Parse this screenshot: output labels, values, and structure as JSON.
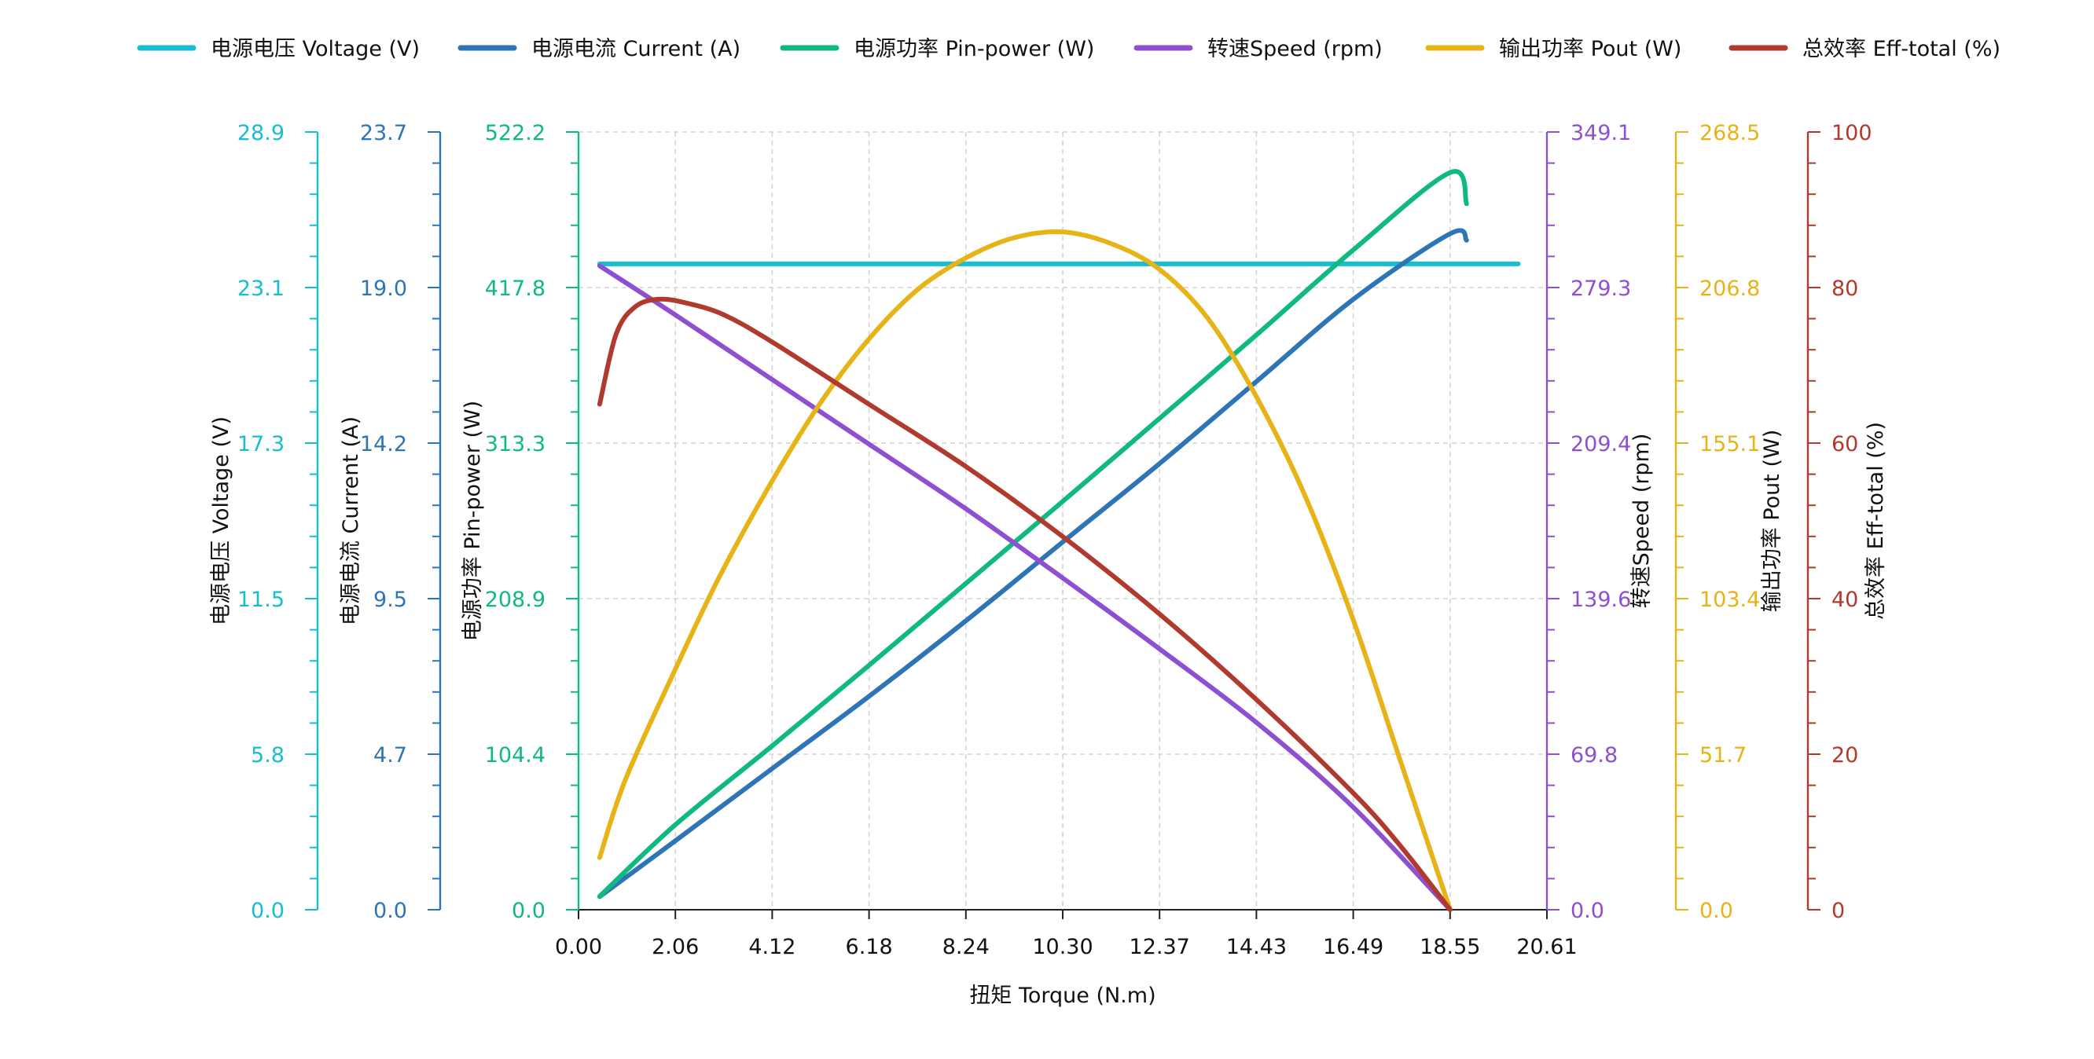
{
  "chart_data": {
    "type": "line",
    "xlabel": "扭矩 Torque (N.m)",
    "xlim": [
      0,
      20.61
    ],
    "xticks": [
      "0.00",
      "2.06",
      "4.12",
      "6.18",
      "8.24",
      "10.30",
      "12.37",
      "14.43",
      "16.49",
      "18.55",
      "20.61"
    ],
    "grid": true,
    "legend_position": "top",
    "axes": [
      {
        "key": "voltage",
        "label": "电源电压 Voltage (V)",
        "color": "#17becf",
        "side": "left",
        "max": 28.9,
        "ticks": [
          "0.0",
          "5.8",
          "11.5",
          "17.3",
          "23.1",
          "28.9"
        ]
      },
      {
        "key": "current",
        "label": "电源电流 Current (A)",
        "color": "#2e75b6",
        "side": "left",
        "max": 23.7,
        "ticks": [
          "0.0",
          "4.7",
          "9.5",
          "14.2",
          "19.0",
          "23.7"
        ]
      },
      {
        "key": "pin",
        "label": "电源功率 Pin-power (W)",
        "color": "#10b981",
        "side": "left",
        "max": 522.2,
        "ticks": [
          "0.0",
          "104.4",
          "208.9",
          "313.3",
          "417.8",
          "522.2"
        ]
      },
      {
        "key": "speed",
        "label": "转速Speed (rpm)",
        "color": "#8e4fd1",
        "side": "right",
        "max": 349.1,
        "ticks": [
          "0.0",
          "69.8",
          "139.6",
          "209.4",
          "279.3",
          "349.1"
        ]
      },
      {
        "key": "pout",
        "label": "输出功率 Pout (W)",
        "color": "#e6b417",
        "side": "right",
        "max": 268.5,
        "ticks": [
          "0.0",
          "51.7",
          "103.4",
          "155.1",
          "206.8",
          "268.5"
        ]
      },
      {
        "key": "eff",
        "label": "总效率 Eff-total (%)",
        "color": "#b03a2e",
        "side": "right",
        "max": 100,
        "ticks": [
          "0",
          "20",
          "40",
          "60",
          "80",
          "100"
        ]
      }
    ],
    "series": [
      {
        "name": "电源电压 Voltage (V)",
        "axis": "voltage",
        "color": "#17becf",
        "x": [
          0.45,
          18.55,
          18.9
        ],
        "y": [
          24.0,
          24.0,
          24.0
        ]
      },
      {
        "name": "电源电流 Current (A)",
        "axis": "current",
        "color": "#2e75b6",
        "x": [
          0.45,
          2.06,
          4.12,
          6.18,
          8.24,
          10.3,
          12.37,
          14.43,
          16.49,
          18.55,
          18.9
        ],
        "y": [
          0.4,
          2.1,
          4.3,
          6.5,
          8.8,
          11.2,
          13.6,
          16.1,
          18.6,
          20.6,
          20.4
        ]
      },
      {
        "name": "电源功率 Pin-power (W)",
        "axis": "pin",
        "color": "#10b981",
        "x": [
          0.45,
          2.06,
          4.12,
          6.18,
          8.24,
          10.3,
          12.37,
          14.43,
          16.49,
          18.55,
          18.9
        ],
        "y": [
          9,
          57,
          110,
          164,
          219,
          274,
          330,
          386,
          443,
          495,
          474
        ]
      },
      {
        "name": "转速Speed (rpm)",
        "axis": "speed",
        "color": "#8e4fd1",
        "x": [
          0.45,
          2.06,
          4.12,
          6.18,
          8.24,
          10.3,
          12.37,
          14.43,
          16.49,
          18.55
        ],
        "y": [
          289,
          267,
          238,
          209,
          180,
          149,
          117,
          84,
          46,
          0
        ]
      },
      {
        "name": "输出功率 Pout (W)",
        "axis": "pout",
        "color": "#e6b417",
        "x": [
          0.45,
          1.0,
          2.06,
          3.0,
          4.12,
          5.15,
          6.18,
          7.21,
          8.24,
          9.27,
          10.3,
          11.33,
          12.37,
          13.4,
          14.43,
          15.46,
          16.49,
          17.52,
          18.55
        ],
        "y": [
          18,
          45,
          83,
          115,
          148,
          175,
          197,
          214,
          225,
          232,
          234,
          230,
          221,
          204,
          177,
          143,
          100,
          50,
          0
        ]
      },
      {
        "name": "总效率 Eff-total (%)",
        "axis": "eff",
        "color": "#b03a2e",
        "x": [
          0.45,
          0.8,
          1.2,
          1.7,
          2.3,
          3.09,
          4.12,
          6.18,
          8.24,
          10.3,
          12.37,
          14.43,
          16.49,
          17.52,
          18.55
        ],
        "y": [
          65,
          74,
          77.5,
          78.5,
          78,
          76.5,
          73,
          65,
          57,
          48,
          38,
          27,
          15,
          8,
          0
        ]
      }
    ]
  }
}
